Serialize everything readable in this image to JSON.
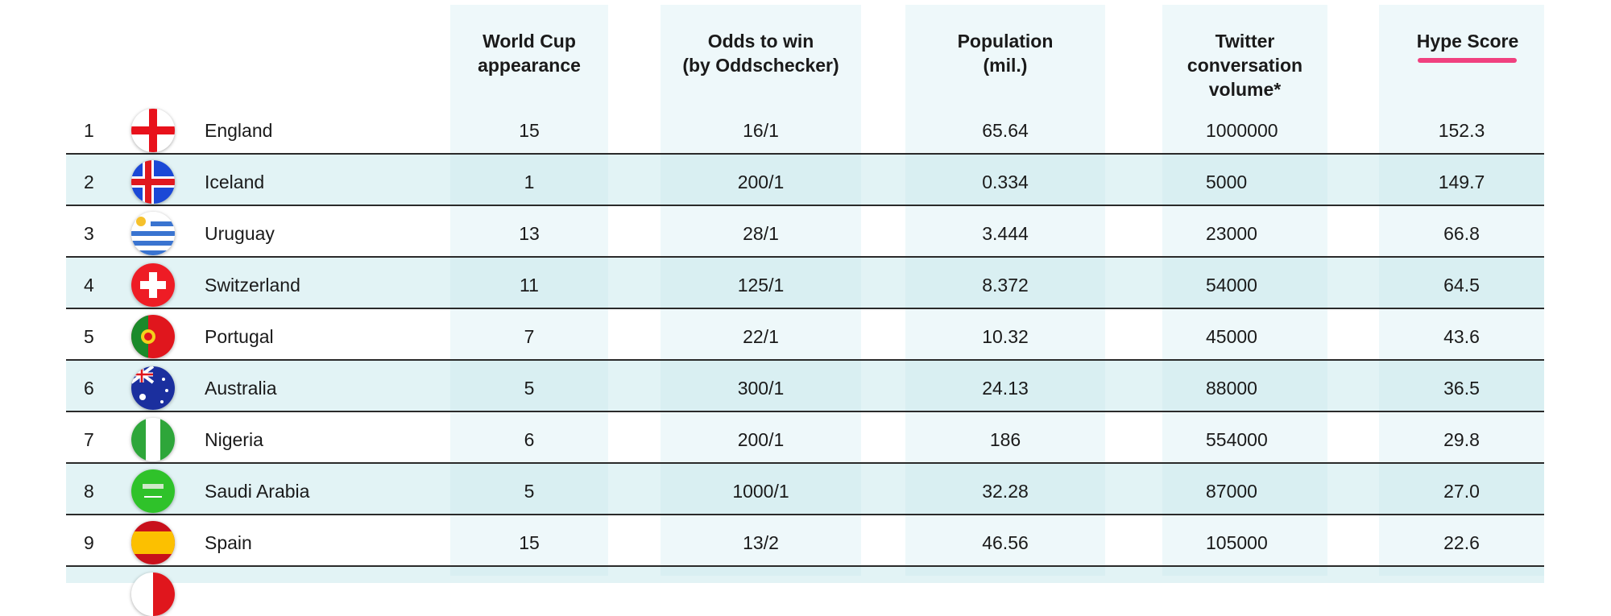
{
  "headers": {
    "appearance": [
      "World Cup",
      "appearance"
    ],
    "odds": [
      "Odds to win",
      "(by Oddschecker)"
    ],
    "population": [
      "Population",
      "(mil.)"
    ],
    "twitter": [
      "Twitter",
      "conversation",
      "volume*"
    ],
    "hype": [
      "Hype Score"
    ]
  },
  "colors": {
    "accent_underline": "#f0417f",
    "column_bg": "#eef8fa",
    "band_bg": "#dff1f4"
  },
  "rows": [
    {
      "rank": "1",
      "country": "England",
      "flag": "england-flag-icon",
      "appearance": "15",
      "odds": "16/1",
      "population": "65.64",
      "twitter": "1000000",
      "hype": "152.3"
    },
    {
      "rank": "2",
      "country": "Iceland",
      "flag": "iceland-flag-icon",
      "appearance": "1",
      "odds": "200/1",
      "population": "0.334",
      "twitter": "5000",
      "hype": "149.7"
    },
    {
      "rank": "3",
      "country": "Uruguay",
      "flag": "uruguay-flag-icon",
      "appearance": "13",
      "odds": "28/1",
      "population": "3.444",
      "twitter": "23000",
      "hype": "66.8"
    },
    {
      "rank": "4",
      "country": "Switzerland",
      "flag": "switzerland-flag-icon",
      "appearance": "11",
      "odds": "125/1",
      "population": "8.372",
      "twitter": "54000",
      "hype": "64.5"
    },
    {
      "rank": "5",
      "country": "Portugal",
      "flag": "portugal-flag-icon",
      "appearance": "7",
      "odds": "22/1",
      "population": "10.32",
      "twitter": "45000",
      "hype": "43.6"
    },
    {
      "rank": "6",
      "country": "Australia",
      "flag": "australia-flag-icon",
      "appearance": "5",
      "odds": "300/1",
      "population": "24.13",
      "twitter": "88000",
      "hype": "36.5"
    },
    {
      "rank": "7",
      "country": "Nigeria",
      "flag": "nigeria-flag-icon",
      "appearance": "6",
      "odds": "200/1",
      "population": "186",
      "twitter": "554000",
      "hype": "29.8"
    },
    {
      "rank": "8",
      "country": "Saudi Arabia",
      "flag": "saudi-arabia-flag-icon",
      "appearance": "5",
      "odds": "1000/1",
      "population": "32.28",
      "twitter": "87000",
      "hype": "27.0"
    },
    {
      "rank": "9",
      "country": "Spain",
      "flag": "spain-flag-icon",
      "appearance": "15",
      "odds": "13/2",
      "population": "46.56",
      "twitter": "105000",
      "hype": "22.6"
    }
  ]
}
